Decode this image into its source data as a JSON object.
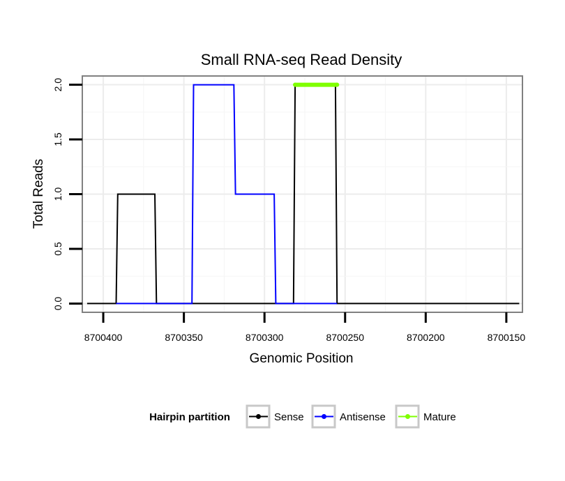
{
  "chart_data": {
    "type": "line",
    "title": "Small RNA-seq Read Density",
    "xlabel": "Genomic Position",
    "ylabel": "Total Reads",
    "xlim": [
      8700413,
      8700140
    ],
    "ylim": [
      -0.08,
      2.08
    ],
    "x_reversed": true,
    "x_ticks": [
      8700400,
      8700350,
      8700300,
      8700250,
      8700200,
      8700150
    ],
    "x_tick_labels": [
      "8700400",
      "8700350",
      "8700300",
      "8700250",
      "8700200",
      "8700150"
    ],
    "y_ticks": [
      0.0,
      0.5,
      1.0,
      1.5,
      2.0
    ],
    "y_tick_labels": [
      "0.0",
      "0.5",
      "1.0",
      "1.5",
      "2.0"
    ],
    "grid": true,
    "legend": {
      "title": "Hairpin partition",
      "position": "bottom",
      "entries": [
        "Sense",
        "Antisense",
        "Mature"
      ]
    },
    "series": [
      {
        "name": "Sense",
        "color": "#000000",
        "points": [
          [
            8700410,
            0
          ],
          [
            8700392,
            0
          ],
          [
            8700391,
            1
          ],
          [
            8700368,
            1
          ],
          [
            8700367,
            0
          ],
          [
            8700323,
            0
          ],
          [
            8700322,
            0
          ],
          [
            8700299,
            0
          ],
          [
            8700298,
            0
          ],
          [
            8700282,
            0
          ],
          [
            8700281,
            2
          ],
          [
            8700256,
            2
          ],
          [
            8700255,
            0
          ],
          [
            8700142,
            0
          ]
        ]
      },
      {
        "name": "Antisense",
        "color": "#0000ff",
        "points": [
          [
            8700392,
            0
          ],
          [
            8700368,
            0
          ],
          [
            8700345,
            0
          ],
          [
            8700344,
            2
          ],
          [
            8700319,
            2
          ],
          [
            8700318,
            1
          ],
          [
            8700294,
            1
          ],
          [
            8700293,
            0
          ],
          [
            8700282,
            0
          ],
          [
            8700255,
            0
          ]
        ]
      },
      {
        "name": "Mature",
        "color": "#7fff00",
        "points": [
          [
            8700281,
            2
          ],
          [
            8700255,
            2
          ]
        ]
      }
    ]
  }
}
